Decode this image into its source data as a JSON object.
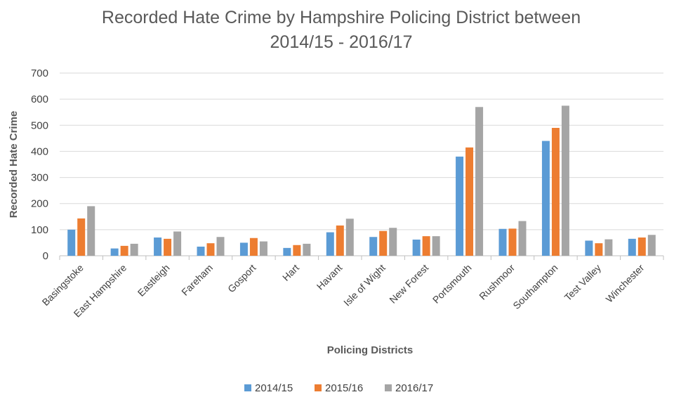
{
  "chart_data": {
    "type": "bar",
    "title_line1": "Recorded Hate Crime by Hampshire Policing District between",
    "title_line2": "2014/15 - 2016/17",
    "xlabel": "Policing Districts",
    "ylabel": "Recorded Hate Crime",
    "ylim": [
      0,
      700
    ],
    "yticks": [
      0,
      100,
      200,
      300,
      400,
      500,
      600,
      700
    ],
    "grid": true,
    "legend_position": "bottom",
    "categories": [
      "Basingstoke",
      "East Hampshire",
      "Eastleigh",
      "Fareham",
      "Gosport",
      "Hart",
      "Havant",
      "Isle of Wight",
      "New Forest",
      "Portsmouth",
      "Rushmoor",
      "Southampton",
      "Test Valley",
      "Winchester"
    ],
    "series": [
      {
        "name": "2014/15",
        "color": "#5b9bd5",
        "values": [
          100,
          28,
          70,
          35,
          50,
          30,
          90,
          72,
          62,
          380,
          103,
          440,
          58,
          65
        ]
      },
      {
        "name": "2015/16",
        "color": "#ed7d31",
        "values": [
          143,
          38,
          65,
          48,
          68,
          41,
          116,
          95,
          75,
          415,
          104,
          490,
          48,
          70
        ]
      },
      {
        "name": "2016/17",
        "color": "#a5a5a5",
        "values": [
          190,
          46,
          93,
          72,
          55,
          46,
          142,
          107,
          75,
          570,
          133,
          575,
          63,
          80
        ]
      }
    ]
  }
}
